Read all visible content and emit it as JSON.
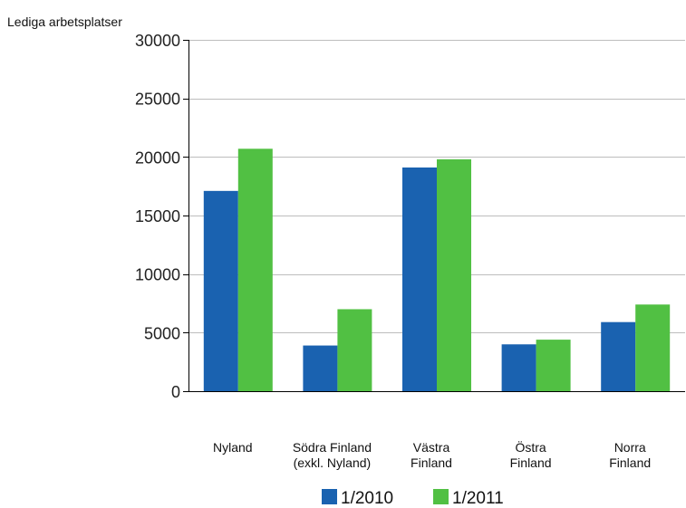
{
  "chart_data": {
    "type": "bar",
    "ylabel": "Lediga arbetsplatser",
    "ylim": [
      0,
      30000
    ],
    "yticks": [
      0,
      5000,
      10000,
      15000,
      20000,
      25000,
      30000
    ],
    "grid": true,
    "legend_position": "bottom",
    "categories": [
      [
        "Nyland"
      ],
      [
        "Södra Finland",
        "(exkl. Nyland)"
      ],
      [
        "Västra",
        "Finland"
      ],
      [
        "Östra",
        "Finland"
      ],
      [
        "Norra",
        "Finland"
      ]
    ],
    "series": [
      {
        "name": "1/2010",
        "color": "#1a62b0",
        "values": [
          17100,
          3900,
          19100,
          4000,
          5900
        ]
      },
      {
        "name": "1/2011",
        "color": "#51c043",
        "values": [
          20700,
          7000,
          19800,
          4400,
          7400
        ]
      }
    ]
  }
}
